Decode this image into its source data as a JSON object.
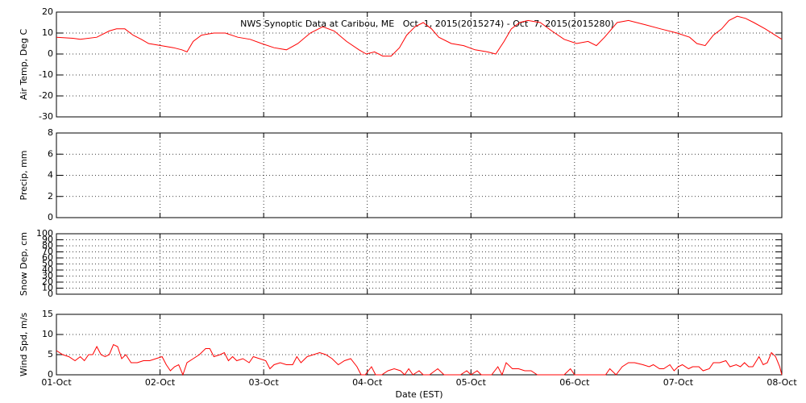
{
  "chart_data": [
    {
      "type": "line",
      "title": "NWS Synoptic Data at Caribou, ME   Oct  1, 2015(2015274) - Oct  7, 2015(2015280)",
      "y_label": "Air Temp, Deg C",
      "color": "#ff0000",
      "grid": true,
      "xlim": [
        0,
        7
      ],
      "ylim": [
        -30,
        20
      ],
      "yticks": [
        -30,
        -20,
        -10,
        0,
        10,
        20
      ],
      "x": [
        0,
        0.16,
        0.23,
        0.39,
        0.51,
        0.58,
        0.66,
        0.74,
        0.82,
        0.89,
        1.01,
        1.13,
        1.21,
        1.26,
        1.32,
        1.4,
        1.52,
        1.63,
        1.75,
        1.87,
        1.98,
        2.1,
        2.22,
        2.33,
        2.45,
        2.57,
        2.68,
        2.8,
        2.92,
        2.99,
        3.07,
        3.15,
        3.23,
        3.31,
        3.38,
        3.46,
        3.54,
        3.62,
        3.69,
        3.81,
        3.93,
        4.04,
        4.16,
        4.24,
        4.32,
        4.39,
        4.47,
        4.55,
        4.67,
        4.78,
        4.9,
        5.02,
        5.13,
        5.21,
        5.29,
        5.41,
        5.52,
        5.68,
        5.83,
        5.99,
        6.11,
        6.18,
        6.26,
        6.34,
        6.42,
        6.49,
        6.57,
        6.65,
        6.73,
        6.84,
        7
      ],
      "values": [
        8,
        7.5,
        7,
        8,
        11,
        12,
        12,
        9,
        7,
        5,
        4,
        3,
        2,
        1,
        6,
        9,
        10,
        10,
        8,
        7,
        5,
        3,
        2,
        5,
        10,
        13,
        11,
        6,
        2,
        0,
        1,
        -1,
        -1,
        3,
        9,
        13,
        15,
        12,
        8,
        5,
        4,
        2,
        1,
        0,
        6,
        12,
        15,
        16,
        15,
        11,
        7,
        5,
        6,
        4,
        8,
        15,
        16,
        14,
        12,
        10,
        8,
        5,
        4,
        9,
        12,
        16,
        18,
        17,
        15,
        12,
        7
      ]
    },
    {
      "type": "line",
      "y_label": "Precip, mm",
      "grid": true,
      "xlim": [
        0,
        7
      ],
      "ylim": [
        0,
        8
      ],
      "yticks": [
        0,
        2,
        4,
        6,
        8
      ]
    },
    {
      "type": "line",
      "y_label": "Snow Dep, cm",
      "grid": true,
      "xlim": [
        0,
        7
      ],
      "ylim": [
        0,
        100
      ],
      "yticks": [
        0,
        10,
        20,
        30,
        40,
        50,
        60,
        70,
        80,
        90,
        100
      ]
    },
    {
      "type": "line",
      "y_label": "Wind Spd, m/s",
      "x_label": "Date (EST)",
      "color": "#ff0000",
      "grid": true,
      "xlim": [
        0,
        7
      ],
      "ylim": [
        0,
        15
      ],
      "yticks": [
        0,
        5,
        10,
        15
      ],
      "xticks": [
        {
          "value": 0,
          "label": "01-Oct"
        },
        {
          "value": 1,
          "label": "02-Oct"
        },
        {
          "value": 2,
          "label": "03-Oct"
        },
        {
          "value": 3,
          "label": "04-Oct"
        },
        {
          "value": 4,
          "label": "05-Oct"
        },
        {
          "value": 5,
          "label": "06-Oct"
        },
        {
          "value": 6,
          "label": "07-Oct"
        },
        {
          "value": 7,
          "label": "08-Oct"
        }
      ],
      "x": [
        0,
        0.06,
        0.12,
        0.18,
        0.23,
        0.27,
        0.31,
        0.35,
        0.39,
        0.43,
        0.47,
        0.51,
        0.55,
        0.59,
        0.63,
        0.67,
        0.72,
        0.78,
        0.84,
        0.9,
        0.96,
        1.02,
        1.06,
        1.1,
        1.14,
        1.18,
        1.22,
        1.26,
        1.32,
        1.38,
        1.44,
        1.48,
        1.52,
        1.58,
        1.62,
        1.66,
        1.7,
        1.74,
        1.8,
        1.86,
        1.9,
        1.96,
        2.02,
        2.06,
        2.1,
        2.16,
        2.22,
        2.28,
        2.32,
        2.36,
        2.42,
        2.48,
        2.54,
        2.6,
        2.66,
        2.72,
        2.78,
        2.84,
        2.9,
        2.94,
        2.98,
        3.04,
        3.08,
        3.14,
        3.2,
        3.26,
        3.32,
        3.36,
        3.4,
        3.44,
        3.5,
        3.54,
        3.6,
        3.68,
        3.74,
        3.9,
        3.96,
        4.0,
        4.06,
        4.1,
        4.2,
        4.26,
        4.3,
        4.34,
        4.4,
        4.46,
        4.52,
        4.58,
        4.64,
        4.9,
        4.96,
        5.0,
        5.3,
        5.34,
        5.4,
        5.46,
        5.52,
        5.58,
        5.66,
        5.72,
        5.76,
        5.82,
        5.86,
        5.92,
        5.96,
        6.0,
        6.04,
        6.1,
        6.14,
        6.2,
        6.24,
        6.3,
        6.34,
        6.4,
        6.46,
        6.5,
        6.56,
        6.6,
        6.64,
        6.68,
        6.72,
        6.78,
        6.82,
        6.86,
        6.9,
        6.94,
        6.98,
        7.0
      ],
      "values": [
        6,
        5,
        4.5,
        3.5,
        4.5,
        3.5,
        5,
        5,
        7,
        5,
        4.5,
        5,
        7.5,
        7,
        4,
        5,
        3,
        3,
        3.5,
        3.5,
        4,
        4.5,
        2.5,
        1,
        2,
        2.5,
        0,
        3,
        4,
        5,
        6.5,
        6.5,
        4.5,
        5,
        5.5,
        3.5,
        4.5,
        3.5,
        4,
        3,
        4.5,
        4,
        3.5,
        1.5,
        2.5,
        3,
        2.5,
        2.5,
        4.5,
        3,
        4.5,
        5,
        5.5,
        5,
        4,
        2.5,
        3.5,
        4,
        2,
        0,
        0,
        2,
        0,
        0,
        1,
        1.5,
        1,
        0,
        1.5,
        0,
        1,
        0,
        0,
        1.5,
        0,
        0,
        1,
        0,
        1,
        0,
        0,
        2,
        0,
        3,
        1.5,
        1.5,
        1,
        1,
        0,
        0,
        1.5,
        0,
        0,
        1.5,
        0,
        2,
        3,
        3,
        2.5,
        2,
        2.5,
        1.5,
        1.5,
        2.5,
        1,
        2,
        2.5,
        1.5,
        2,
        2,
        1,
        1.5,
        3,
        3,
        3.5,
        2,
        2.5,
        2,
        3,
        2,
        2,
        4.5,
        2.5,
        3,
        5.5,
        4.5,
        2,
        0
      ]
    }
  ]
}
